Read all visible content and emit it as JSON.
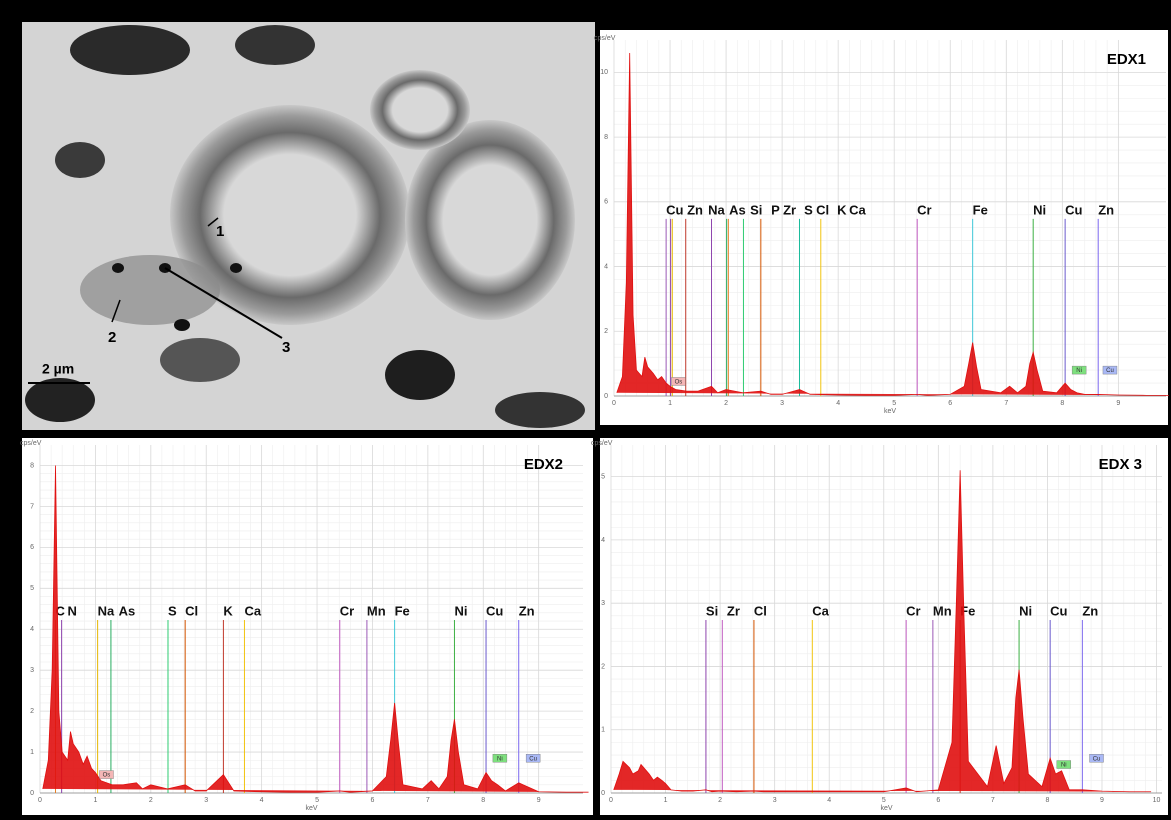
{
  "micrograph": {
    "labels": [
      "1",
      "2",
      "3"
    ],
    "scale_bar": "2 µm"
  },
  "chart_data": [
    {
      "type": "spectrum",
      "title": "EDX1",
      "x_label": "keV",
      "y_label": "cps/eV",
      "color": "#e01010",
      "x": [
        0.05,
        0.15,
        0.22,
        0.28,
        0.34,
        0.4,
        0.5,
        0.55,
        0.6,
        0.7,
        0.78,
        0.85,
        0.93,
        1.0,
        1.1,
        1.3,
        1.5,
        1.74,
        1.85,
        2.0,
        2.3,
        2.62,
        2.8,
        3.0,
        3.31,
        3.5,
        4.0,
        4.5,
        5.0,
        5.41,
        5.6,
        6.0,
        6.25,
        6.33,
        6.4,
        6.47,
        6.55,
        6.9,
        7.06,
        7.2,
        7.35,
        7.42,
        7.48,
        7.55,
        7.65,
        7.9,
        8.05,
        8.15,
        8.26,
        8.4,
        8.64,
        9.0,
        9.5,
        9.9
      ],
      "values": [
        0.1,
        0.6,
        3.5,
        10.6,
        2.5,
        0.8,
        0.6,
        1.2,
        0.9,
        0.7,
        0.5,
        0.6,
        0.4,
        0.3,
        0.2,
        0.15,
        0.15,
        0.3,
        0.1,
        0.2,
        0.1,
        0.15,
        0.05,
        0.05,
        0.2,
        0.05,
        0.03,
        0.02,
        0.02,
        0.05,
        0.02,
        0.05,
        0.3,
        1.0,
        1.65,
        0.9,
        0.2,
        0.1,
        0.3,
        0.1,
        0.3,
        1.0,
        1.35,
        0.8,
        0.15,
        0.1,
        0.4,
        0.2,
        0.1,
        0.05,
        0.05,
        0.03,
        0.02,
        0.02
      ],
      "xlim": [
        0,
        9.85
      ],
      "xticks": [
        0,
        1,
        2,
        3,
        4,
        5,
        6,
        7,
        8,
        9
      ],
      "ylim": [
        0,
        11
      ],
      "yticks": [
        0,
        2,
        4,
        6,
        8,
        10
      ],
      "grid": true,
      "elements": [
        {
          "label": "Cu",
          "x": 0.93,
          "color": "#9b59b6"
        },
        {
          "label": "Zn",
          "x": 1.01,
          "color": "#8e44ad"
        },
        {
          "label": "Na",
          "x": 1.04,
          "color": "#e6b800"
        },
        {
          "label": "As",
          "x": 1.28,
          "color": "#c0392b"
        },
        {
          "label": "Si",
          "x": 1.74,
          "color": "#8e44ad"
        },
        {
          "label": "P",
          "x": 2.01,
          "color": "#27ae60"
        },
        {
          "label": "Zr",
          "x": 2.04,
          "color": "#e67e22"
        },
        {
          "label": "S",
          "x": 2.31,
          "color": "#2ecc71"
        },
        {
          "label": "Cl",
          "x": 2.62,
          "color": "#d35400"
        },
        {
          "label": "K",
          "x": 3.31,
          "color": "#1abc9c"
        },
        {
          "label": "Ca",
          "x": 3.69,
          "color": "#f1c40f"
        },
        {
          "label": "Cr",
          "x": 5.41,
          "color": "#c05ac0"
        },
        {
          "label": "Fe",
          "x": 6.4,
          "color": "#40c8d8"
        },
        {
          "label": "Ni",
          "x": 7.48,
          "color": "#3cb043"
        },
        {
          "label": "Cu",
          "x": 8.05,
          "color": "#6a5acd"
        },
        {
          "label": "Zn",
          "x": 8.64,
          "color": "#7b68ee"
        }
      ],
      "boxes": [
        {
          "label": "Os",
          "x": 1.15,
          "y": 0.45,
          "color": "#f4b6b6"
        },
        {
          "label": "Ni",
          "x": 8.3,
          "y": 0.8,
          "color": "#7ee07e"
        },
        {
          "label": "Cu",
          "x": 8.85,
          "y": 0.8,
          "color": "#a9b8f5"
        }
      ]
    },
    {
      "type": "spectrum",
      "title": "EDX2",
      "x_label": "keV",
      "y_label": "cps/eV",
      "color": "#e01010",
      "x": [
        0.05,
        0.15,
        0.22,
        0.28,
        0.34,
        0.4,
        0.5,
        0.55,
        0.6,
        0.7,
        0.78,
        0.85,
        0.93,
        1.0,
        1.1,
        1.3,
        1.5,
        1.74,
        1.85,
        2.0,
        2.3,
        2.62,
        2.8,
        3.0,
        3.31,
        3.5,
        4.0,
        4.5,
        5.0,
        5.41,
        5.6,
        6.0,
        6.25,
        6.33,
        6.4,
        6.47,
        6.55,
        6.9,
        7.06,
        7.2,
        7.35,
        7.42,
        7.48,
        7.55,
        7.65,
        7.9,
        8.05,
        8.15,
        8.26,
        8.4,
        8.64,
        9.0,
        9.5,
        9.9
      ],
      "values": [
        0.1,
        0.8,
        3.0,
        8.0,
        2.0,
        1.0,
        0.8,
        1.5,
        1.2,
        1.0,
        0.7,
        0.9,
        0.6,
        0.5,
        0.3,
        0.2,
        0.2,
        0.25,
        0.1,
        0.2,
        0.1,
        0.2,
        0.05,
        0.05,
        0.45,
        0.05,
        0.03,
        0.02,
        0.02,
        0.05,
        0.02,
        0.05,
        0.4,
        1.3,
        2.2,
        1.2,
        0.2,
        0.1,
        0.3,
        0.1,
        0.4,
        1.3,
        1.8,
        1.0,
        0.2,
        0.1,
        0.5,
        0.3,
        0.2,
        0.05,
        0.25,
        0.03,
        0.02,
        0.02
      ],
      "xlim": [
        0,
        9.8
      ],
      "xticks": [
        0,
        1,
        2,
        3,
        4,
        5,
        6,
        7,
        8,
        9
      ],
      "ylim": [
        0,
        8.5
      ],
      "yticks": [
        0,
        1,
        2,
        3,
        4,
        5,
        6,
        7,
        8
      ],
      "grid": true,
      "elements": [
        {
          "label": "C",
          "x": 0.28,
          "color": "#e67e22"
        },
        {
          "label": "N",
          "x": 0.39,
          "color": "#8e44ad"
        },
        {
          "label": "Na",
          "x": 1.04,
          "color": "#e6b800"
        },
        {
          "label": "As",
          "x": 1.28,
          "color": "#27ae60"
        },
        {
          "label": "S",
          "x": 2.31,
          "color": "#2ecc71"
        },
        {
          "label": "Cl",
          "x": 2.62,
          "color": "#d35400"
        },
        {
          "label": "K",
          "x": 3.31,
          "color": "#c0392b"
        },
        {
          "label": "Ca",
          "x": 3.69,
          "color": "#f1c40f"
        },
        {
          "label": "Cr",
          "x": 5.41,
          "color": "#c05ac0"
        },
        {
          "label": "Mn",
          "x": 5.9,
          "color": "#9b59b6"
        },
        {
          "label": "Fe",
          "x": 6.4,
          "color": "#40c8d8"
        },
        {
          "label": "Ni",
          "x": 7.48,
          "color": "#3cb043"
        },
        {
          "label": "Cu",
          "x": 8.05,
          "color": "#6a5acd"
        },
        {
          "label": "Zn",
          "x": 8.64,
          "color": "#7b68ee"
        }
      ],
      "boxes": [
        {
          "label": "Os",
          "x": 1.2,
          "y": 0.45,
          "color": "#f4b6b6"
        },
        {
          "label": "Ni",
          "x": 8.3,
          "y": 0.85,
          "color": "#7ee07e"
        },
        {
          "label": "Cu",
          "x": 8.9,
          "y": 0.85,
          "color": "#a9b8f5"
        }
      ]
    },
    {
      "type": "spectrum",
      "title": "EDX 3",
      "x_label": "keV",
      "y_label": "cps/eV",
      "color": "#e01010",
      "x": [
        0.05,
        0.15,
        0.22,
        0.28,
        0.34,
        0.4,
        0.5,
        0.55,
        0.6,
        0.7,
        0.78,
        0.85,
        0.93,
        1.0,
        1.1,
        1.3,
        1.5,
        1.74,
        1.85,
        2.0,
        2.3,
        2.62,
        2.8,
        3.0,
        3.31,
        3.5,
        4.0,
        4.5,
        5.0,
        5.41,
        5.6,
        6.0,
        6.25,
        6.33,
        6.4,
        6.47,
        6.55,
        6.9,
        7.06,
        7.2,
        7.35,
        7.42,
        7.48,
        7.55,
        7.65,
        7.9,
        8.05,
        8.15,
        8.26,
        8.4,
        8.64,
        9.0,
        9.5,
        9.9
      ],
      "values": [
        0.05,
        0.3,
        0.5,
        0.45,
        0.4,
        0.3,
        0.35,
        0.45,
        0.4,
        0.3,
        0.2,
        0.25,
        0.2,
        0.15,
        0.05,
        0.03,
        0.03,
        0.05,
        0.02,
        0.03,
        0.02,
        0.03,
        0.02,
        0.02,
        0.02,
        0.02,
        0.02,
        0.02,
        0.02,
        0.08,
        0.02,
        0.05,
        0.8,
        3.0,
        5.1,
        2.8,
        0.5,
        0.1,
        0.75,
        0.15,
        0.4,
        1.5,
        1.95,
        1.2,
        0.3,
        0.1,
        0.55,
        0.3,
        0.35,
        0.05,
        0.05,
        0.03,
        0.02,
        0.02
      ],
      "xlim": [
        0,
        10.1
      ],
      "xticks": [
        0,
        1,
        2,
        3,
        4,
        5,
        6,
        7,
        8,
        9,
        10
      ],
      "ylim": [
        0,
        5.5
      ],
      "yticks": [
        0,
        1,
        2,
        3,
        4,
        5
      ],
      "grid": true,
      "elements": [
        {
          "label": "Si",
          "x": 1.74,
          "color": "#8e44ad"
        },
        {
          "label": "Zr",
          "x": 2.04,
          "color": "#c05ac0"
        },
        {
          "label": "Cl",
          "x": 2.62,
          "color": "#d35400"
        },
        {
          "label": "Ca",
          "x": 3.69,
          "color": "#f1c40f"
        },
        {
          "label": "Cr",
          "x": 5.41,
          "color": "#c05ac0"
        },
        {
          "label": "Mn",
          "x": 5.9,
          "color": "#9b59b6"
        },
        {
          "label": "Fe",
          "x": 6.4,
          "color": "#c0392b"
        },
        {
          "label": "Ni",
          "x": 7.48,
          "color": "#3cb043"
        },
        {
          "label": "Cu",
          "x": 8.05,
          "color": "#6a5acd"
        },
        {
          "label": "Zn",
          "x": 8.64,
          "color": "#7b68ee"
        }
      ],
      "boxes": [
        {
          "label": "Ni",
          "x": 8.3,
          "y": 0.45,
          "color": "#7ee07e"
        },
        {
          "label": "Cu",
          "x": 8.9,
          "y": 0.55,
          "color": "#a9b8f5"
        }
      ]
    }
  ]
}
